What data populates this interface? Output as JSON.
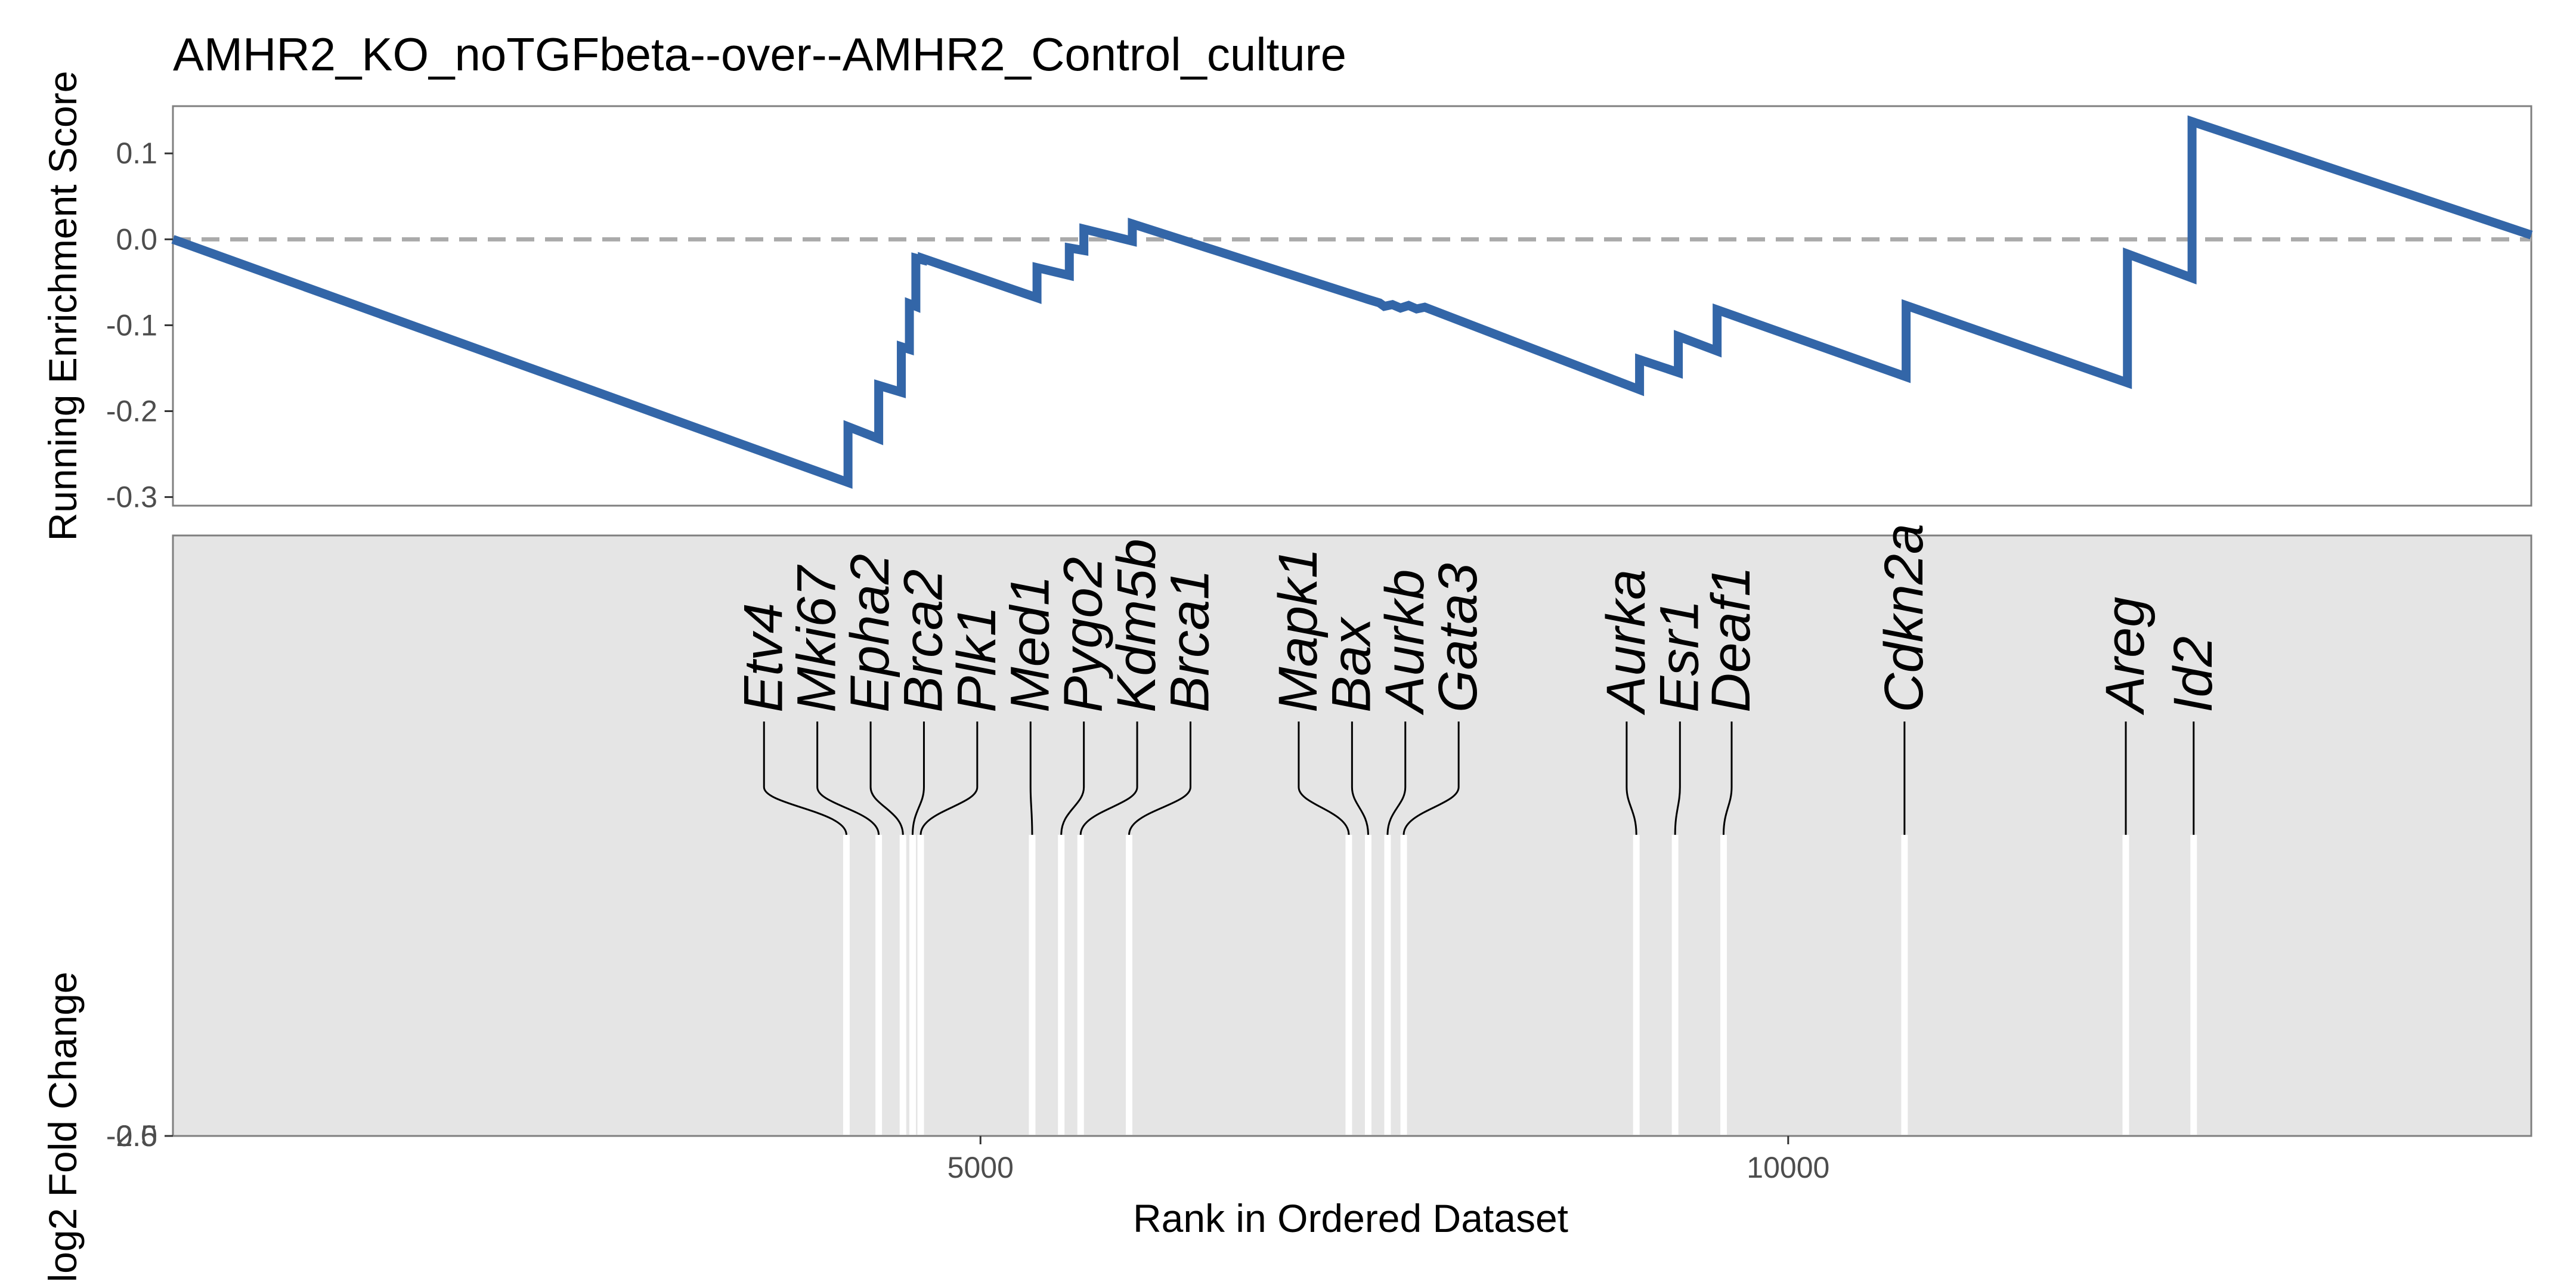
{
  "chart_data": {
    "type": "line",
    "title": "AMHR2_KO_noTGFbeta--over--AMHR2_Control_culture",
    "xlabel": "Rank in Ordered Dataset",
    "ylabel_top": "Running Enrichment Score",
    "ylabel_bottom": "log2 Fold Change",
    "xlim": [
      1,
      14600
    ],
    "ylim": [
      -0.31,
      0.155
    ],
    "x_ticks": [
      5000,
      10000
    ],
    "y_ticks": [
      -0.3,
      -0.2,
      -0.1,
      0.0,
      0.1
    ],
    "y_tick_labels": [
      "-0.3",
      "-0.2",
      "-0.1",
      "0.0",
      "0.1"
    ],
    "bottom_y_tick_labels": [
      "-2.5",
      "0.0"
    ],
    "line_color": "#3366a8",
    "zero_line_color": "#aaaaaa",
    "gene_panel_color": "#e5e5e5",
    "hit_line_color": "#ffffff",
    "running_score": {
      "x": [
        1,
        4180,
        4180,
        4370,
        4370,
        4510,
        4510,
        4560,
        4560,
        4600,
        4600,
        4640,
        4640,
        5350,
        5350,
        5550,
        5550,
        5640,
        5640,
        5940,
        5940,
        7400,
        7470,
        7500,
        7550,
        7600,
        7650,
        7700,
        7750,
        9080,
        9080,
        9320,
        9320,
        9560,
        9560,
        10730,
        10730,
        12100,
        12100,
        12500,
        12500,
        14600
      ],
      "y": [
        0.0,
        -0.283,
        -0.218,
        -0.232,
        -0.17,
        -0.178,
        -0.125,
        -0.128,
        -0.075,
        -0.078,
        -0.022,
        -0.024,
        -0.022,
        -0.068,
        -0.033,
        -0.042,
        -0.01,
        -0.013,
        0.012,
        -0.002,
        0.018,
        -0.07,
        -0.074,
        -0.078,
        -0.076,
        -0.08,
        -0.077,
        -0.081,
        -0.079,
        -0.175,
        -0.14,
        -0.155,
        -0.113,
        -0.13,
        -0.082,
        -0.16,
        -0.077,
        -0.167,
        -0.017,
        -0.045,
        0.137,
        0.005
      ]
    },
    "genes": [
      {
        "name": "Etv4",
        "rank": 4170,
        "label_x": 3660
      },
      {
        "name": "Mki67",
        "rank": 4370,
        "label_x": 3990
      },
      {
        "name": "Epha2",
        "rank": 4520,
        "label_x": 4320
      },
      {
        "name": "Brca2",
        "rank": 4580,
        "label_x": 4650
      },
      {
        "name": "Plk1",
        "rank": 4630,
        "label_x": 4980
      },
      {
        "name": "Med1",
        "rank": 5320,
        "label_x": 5310
      },
      {
        "name": "Pygo2",
        "rank": 5500,
        "label_x": 5640
      },
      {
        "name": "Kdm5b",
        "rank": 5620,
        "label_x": 5970
      },
      {
        "name": "Brca1",
        "rank": 5920,
        "label_x": 6300
      },
      {
        "name": "Mapk1",
        "rank": 7280,
        "label_x": 6970
      },
      {
        "name": "Bax",
        "rank": 7400,
        "label_x": 7300
      },
      {
        "name": "Aurkb",
        "rank": 7520,
        "label_x": 7630
      },
      {
        "name": "Gata3",
        "rank": 7620,
        "label_x": 7960
      },
      {
        "name": "Aurka",
        "rank": 9060,
        "label_x": 9000
      },
      {
        "name": "Esr1",
        "rank": 9300,
        "label_x": 9330
      },
      {
        "name": "Deaf1",
        "rank": 9600,
        "label_x": 9650
      },
      {
        "name": "Cdkn2a",
        "rank": 10720,
        "label_x": 10720
      },
      {
        "name": "Areg",
        "rank": 12090,
        "label_x": 12090
      },
      {
        "name": "Id2",
        "rank": 12510,
        "label_x": 12510
      }
    ]
  }
}
